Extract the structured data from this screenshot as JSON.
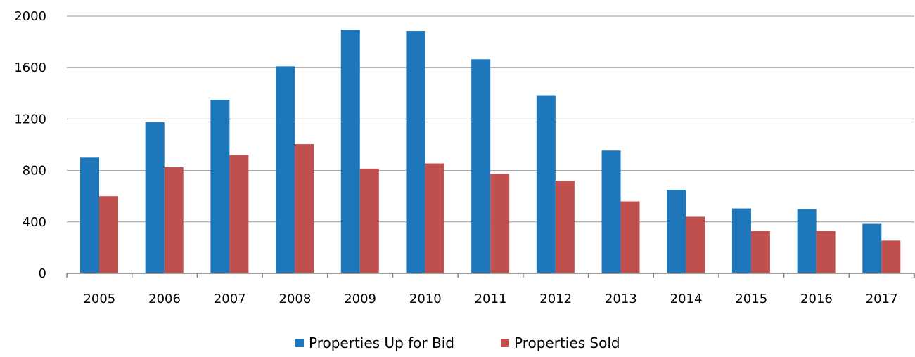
{
  "chart_data": {
    "type": "bar",
    "categories": [
      "2005",
      "2006",
      "2007",
      "2008",
      "2009",
      "2010",
      "2011",
      "2012",
      "2013",
      "2014",
      "2015",
      "2016",
      "2017"
    ],
    "series": [
      {
        "name": "Properties Up for Bid",
        "color": "#1F77BB",
        "values": [
          900,
          1175,
          1350,
          1610,
          1895,
          1885,
          1665,
          1385,
          955,
          650,
          505,
          500,
          385
        ]
      },
      {
        "name": "Properties Sold",
        "color": "#C0504D",
        "values": [
          600,
          825,
          920,
          1005,
          815,
          855,
          775,
          720,
          560,
          440,
          330,
          330,
          255
        ]
      }
    ],
    "yticks": [
      "0",
      "400",
      "800",
      "1200",
      "1600",
      "2000"
    ],
    "ylim": [
      0,
      2000
    ],
    "grid": true,
    "legend_position": "bottom"
  }
}
